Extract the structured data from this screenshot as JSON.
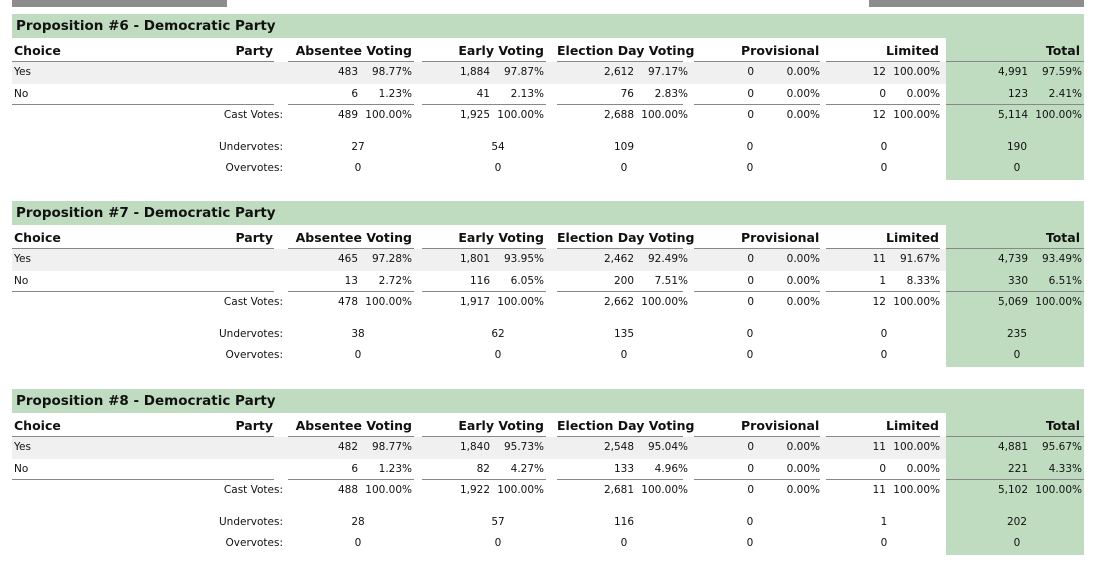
{
  "headers": {
    "choice": "Choice",
    "party": "Party",
    "absentee": "Absentee Voting",
    "early": "Early Voting",
    "election_day": "Election Day Voting",
    "provisional": "Provisional",
    "limited": "Limited",
    "total": "Total"
  },
  "labels": {
    "cast": "Cast Votes:",
    "under": "Undervotes:",
    "over": "Overvotes:"
  },
  "colors": {
    "header_fill": "#c0dcc0",
    "stripe": "#f0f0f0"
  },
  "propositions": [
    {
      "title": "Proposition #6 - Democratic Party",
      "rows": [
        {
          "choice": "Yes",
          "abs": "483",
          "abs_p": "98.77%",
          "early": "1,884",
          "early_p": "97.87%",
          "ed": "2,612",
          "ed_p": "97.17%",
          "prov": "0",
          "prov_p": "0.00%",
          "lim": "12",
          "lim_p": "100.00%",
          "tot": "4,991",
          "tot_p": "97.59%"
        },
        {
          "choice": "No",
          "abs": "6",
          "abs_p": "1.23%",
          "early": "41",
          "early_p": "2.13%",
          "ed": "76",
          "ed_p": "2.83%",
          "prov": "0",
          "prov_p": "0.00%",
          "lim": "0",
          "lim_p": "0.00%",
          "tot": "123",
          "tot_p": "2.41%"
        }
      ],
      "cast": {
        "abs": "489",
        "abs_p": "100.00%",
        "early": "1,925",
        "early_p": "100.00%",
        "ed": "2,688",
        "ed_p": "100.00%",
        "prov": "0",
        "prov_p": "0.00%",
        "lim": "12",
        "lim_p": "100.00%",
        "tot": "5,114",
        "tot_p": "100.00%"
      },
      "under": {
        "abs": "27",
        "early": "54",
        "ed": "109",
        "prov": "0",
        "lim": "0",
        "tot": "190"
      },
      "over": {
        "abs": "0",
        "early": "0",
        "ed": "0",
        "prov": "0",
        "lim": "0",
        "tot": "0"
      }
    },
    {
      "title": "Proposition #7 - Democratic Party",
      "rows": [
        {
          "choice": "Yes",
          "abs": "465",
          "abs_p": "97.28%",
          "early": "1,801",
          "early_p": "93.95%",
          "ed": "2,462",
          "ed_p": "92.49%",
          "prov": "0",
          "prov_p": "0.00%",
          "lim": "11",
          "lim_p": "91.67%",
          "tot": "4,739",
          "tot_p": "93.49%"
        },
        {
          "choice": "No",
          "abs": "13",
          "abs_p": "2.72%",
          "early": "116",
          "early_p": "6.05%",
          "ed": "200",
          "ed_p": "7.51%",
          "prov": "0",
          "prov_p": "0.00%",
          "lim": "1",
          "lim_p": "8.33%",
          "tot": "330",
          "tot_p": "6.51%"
        }
      ],
      "cast": {
        "abs": "478",
        "abs_p": "100.00%",
        "early": "1,917",
        "early_p": "100.00%",
        "ed": "2,662",
        "ed_p": "100.00%",
        "prov": "0",
        "prov_p": "0.00%",
        "lim": "12",
        "lim_p": "100.00%",
        "tot": "5,069",
        "tot_p": "100.00%"
      },
      "under": {
        "abs": "38",
        "early": "62",
        "ed": "135",
        "prov": "0",
        "lim": "0",
        "tot": "235"
      },
      "over": {
        "abs": "0",
        "early": "0",
        "ed": "0",
        "prov": "0",
        "lim": "0",
        "tot": "0"
      }
    },
    {
      "title": "Proposition #8 - Democratic Party",
      "rows": [
        {
          "choice": "Yes",
          "abs": "482",
          "abs_p": "98.77%",
          "early": "1,840",
          "early_p": "95.73%",
          "ed": "2,548",
          "ed_p": "95.04%",
          "prov": "0",
          "prov_p": "0.00%",
          "lim": "11",
          "lim_p": "100.00%",
          "tot": "4,881",
          "tot_p": "95.67%"
        },
        {
          "choice": "No",
          "abs": "6",
          "abs_p": "1.23%",
          "early": "82",
          "early_p": "4.27%",
          "ed": "133",
          "ed_p": "4.96%",
          "prov": "0",
          "prov_p": "0.00%",
          "lim": "0",
          "lim_p": "0.00%",
          "tot": "221",
          "tot_p": "4.33%"
        }
      ],
      "cast": {
        "abs": "488",
        "abs_p": "100.00%",
        "early": "1,922",
        "early_p": "100.00%",
        "ed": "2,681",
        "ed_p": "100.00%",
        "prov": "0",
        "prov_p": "0.00%",
        "lim": "11",
        "lim_p": "100.00%",
        "tot": "5,102",
        "tot_p": "100.00%"
      },
      "under": {
        "abs": "28",
        "early": "57",
        "ed": "116",
        "prov": "0",
        "lim": "1",
        "tot": "202"
      },
      "over": {
        "abs": "0",
        "early": "0",
        "ed": "0",
        "prov": "0",
        "lim": "0",
        "tot": "0"
      }
    }
  ]
}
